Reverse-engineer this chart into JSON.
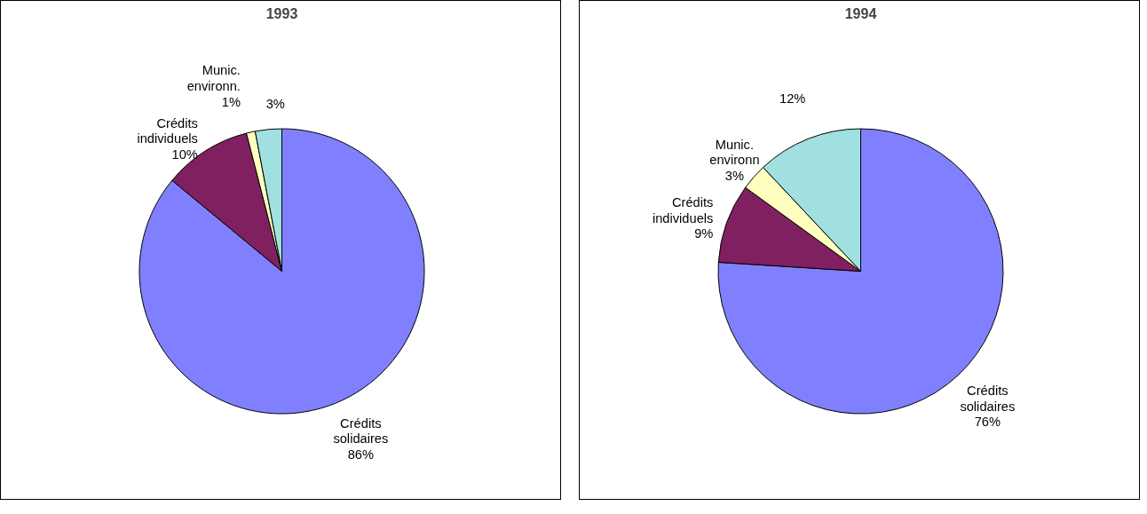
{
  "chart_data": [
    {
      "type": "pie",
      "title": "1993",
      "categories": [
        "Crédits solidaires",
        "Crédits individuels",
        "Munic. environn.",
        null
      ],
      "values": [
        86,
        10,
        1,
        3
      ],
      "value_labels": [
        "86%",
        "10%",
        "1%",
        "3%"
      ],
      "colors": [
        "#8080ff",
        "#802060",
        "#ffffc0",
        "#a0e0e0"
      ],
      "legend": false
    },
    {
      "type": "pie",
      "title": "1994",
      "categories": [
        "Crédits solidaires",
        "Crédits individuels",
        "Munic. environn",
        null
      ],
      "values": [
        76,
        9,
        3,
        12
      ],
      "value_labels": [
        "76%",
        "9%",
        "3%",
        "12%"
      ],
      "colors": [
        "#8080ff",
        "#802060",
        "#ffffc0",
        "#a0e0e0"
      ],
      "legend": false
    }
  ]
}
